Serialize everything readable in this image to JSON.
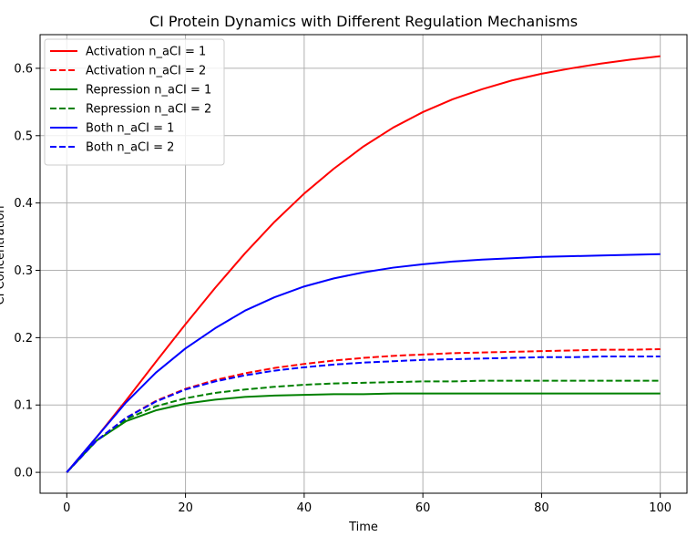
{
  "chart_data": {
    "type": "line",
    "title": "CI Protein Dynamics with Different Regulation Mechanisms",
    "xlabel": "Time",
    "ylabel": "CI Concentration",
    "xlim": [
      -4.5,
      104.5
    ],
    "ylim": [
      -0.031,
      0.65
    ],
    "xticks": [
      0,
      20,
      40,
      60,
      80,
      100
    ],
    "xtick_labels": [
      "0",
      "20",
      "40",
      "60",
      "80",
      "100"
    ],
    "yticks": [
      0.0,
      0.1,
      0.2,
      0.3,
      0.4,
      0.5,
      0.6
    ],
    "ytick_labels": [
      "0.0",
      "0.1",
      "0.2",
      "0.3",
      "0.4",
      "0.5",
      "0.6"
    ],
    "grid": true,
    "legend_position": "upper-left",
    "x": [
      0,
      5,
      10,
      15,
      20,
      25,
      30,
      35,
      40,
      45,
      50,
      55,
      60,
      65,
      70,
      75,
      80,
      85,
      90,
      95,
      100
    ],
    "series": [
      {
        "name": "Activation n_aCI = 1",
        "color": "#ff0000",
        "dash": "solid",
        "values": [
          0.0,
          0.052,
          0.107,
          0.164,
          0.22,
          0.274,
          0.325,
          0.372,
          0.414,
          0.451,
          0.484,
          0.512,
          0.535,
          0.554,
          0.569,
          0.582,
          0.592,
          0.6,
          0.607,
          0.613,
          0.618
        ]
      },
      {
        "name": "Activation n_aCI = 2",
        "color": "#ff0000",
        "dash": "dashed",
        "values": [
          0.0,
          0.047,
          0.081,
          0.106,
          0.124,
          0.137,
          0.147,
          0.155,
          0.161,
          0.166,
          0.17,
          0.173,
          0.175,
          0.177,
          0.178,
          0.179,
          0.18,
          0.181,
          0.182,
          0.182,
          0.183
        ]
      },
      {
        "name": "Repression n_aCI = 1",
        "color": "#008000",
        "dash": "solid",
        "values": [
          0.0,
          0.047,
          0.076,
          0.092,
          0.102,
          0.108,
          0.112,
          0.114,
          0.115,
          0.116,
          0.116,
          0.117,
          0.117,
          0.117,
          0.117,
          0.117,
          0.117,
          0.117,
          0.117,
          0.117,
          0.117
        ]
      },
      {
        "name": "Repression n_aCI = 2",
        "color": "#008000",
        "dash": "dashed",
        "values": [
          0.0,
          0.047,
          0.079,
          0.098,
          0.11,
          0.118,
          0.123,
          0.127,
          0.13,
          0.132,
          0.133,
          0.134,
          0.135,
          0.135,
          0.136,
          0.136,
          0.136,
          0.136,
          0.136,
          0.136,
          0.136
        ]
      },
      {
        "name": "Both n_aCI = 1",
        "color": "#0000ff",
        "dash": "solid",
        "values": [
          0.0,
          0.052,
          0.104,
          0.148,
          0.184,
          0.214,
          0.24,
          0.26,
          0.276,
          0.288,
          0.297,
          0.304,
          0.309,
          0.313,
          0.316,
          0.318,
          0.32,
          0.321,
          0.322,
          0.323,
          0.324
        ]
      },
      {
        "name": "Both n_aCI = 2",
        "color": "#0000ff",
        "dash": "dashed",
        "values": [
          0.0,
          0.047,
          0.081,
          0.105,
          0.123,
          0.135,
          0.144,
          0.151,
          0.156,
          0.16,
          0.163,
          0.165,
          0.167,
          0.168,
          0.169,
          0.17,
          0.171,
          0.171,
          0.172,
          0.172,
          0.172
        ]
      }
    ]
  }
}
